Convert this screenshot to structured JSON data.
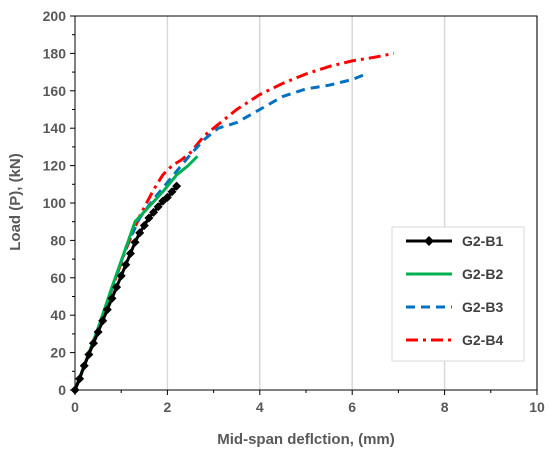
{
  "chart_data": {
    "type": "line",
    "title": "",
    "xlabel": "Mid-span deflction, (mm)",
    "ylabel": "Load (P), (kN)",
    "xlim": [
      0,
      10
    ],
    "ylim": [
      0,
      200
    ],
    "xticks": [
      0,
      2,
      4,
      6,
      8,
      10
    ],
    "yticks": [
      0,
      20,
      40,
      60,
      80,
      100,
      120,
      140,
      160,
      180,
      200
    ],
    "grid": "vertical",
    "legend_position": "right",
    "series": [
      {
        "name": "G2-B1",
        "color": "#000000",
        "line_style": "solid",
        "marker": "diamond",
        "x": [
          0,
          0.1,
          0.2,
          0.3,
          0.4,
          0.5,
          0.6,
          0.7,
          0.8,
          0.9,
          1.0,
          1.1,
          1.2,
          1.3,
          1.4,
          1.5,
          1.6,
          1.7,
          1.8,
          1.9,
          2.0,
          2.1,
          2.2
        ],
        "y": [
          0,
          6,
          13,
          19,
          25,
          31,
          37,
          43,
          49,
          55,
          61,
          67,
          73,
          79,
          84,
          88,
          92,
          95,
          98,
          101,
          103,
          106,
          109
        ]
      },
      {
        "name": "G2-B2",
        "color": "#00b050",
        "line_style": "solid",
        "x": [
          0,
          0.2,
          0.5,
          0.8,
          1.1,
          1.3,
          1.6,
          1.9,
          2.2,
          2.45,
          2.65
        ],
        "y": [
          0,
          13,
          33,
          55,
          76,
          90,
          98,
          106,
          115,
          120,
          125
        ]
      },
      {
        "name": "G2-B3",
        "color": "#0070c0",
        "line_style": "dash",
        "x": [
          0,
          0.2,
          0.5,
          0.8,
          1.1,
          1.4,
          1.7,
          1.9,
          2.2,
          2.5,
          2.8,
          3.1,
          3.5,
          4.0,
          4.5,
          5.0,
          5.5,
          6.0,
          6.3
        ],
        "y": [
          0,
          13,
          33,
          54,
          76,
          92,
          102,
          108,
          117,
          126,
          134,
          140,
          143,
          150,
          157,
          161,
          163,
          166,
          169
        ]
      },
      {
        "name": "G2-B4",
        "color": "#ff0000",
        "line_style": "dashdot",
        "x": [
          0,
          0.2,
          0.5,
          0.8,
          1.1,
          1.4,
          1.7,
          1.9,
          2.1,
          2.3,
          2.5,
          2.8,
          3.1,
          3.5,
          4.0,
          4.5,
          5.0,
          5.5,
          6.0,
          6.5,
          6.9
        ],
        "y": [
          0,
          13,
          33,
          54,
          75,
          93,
          107,
          115,
          120,
          123,
          127,
          136,
          142,
          150,
          158,
          164,
          169,
          173,
          176,
          178,
          180
        ]
      }
    ]
  }
}
